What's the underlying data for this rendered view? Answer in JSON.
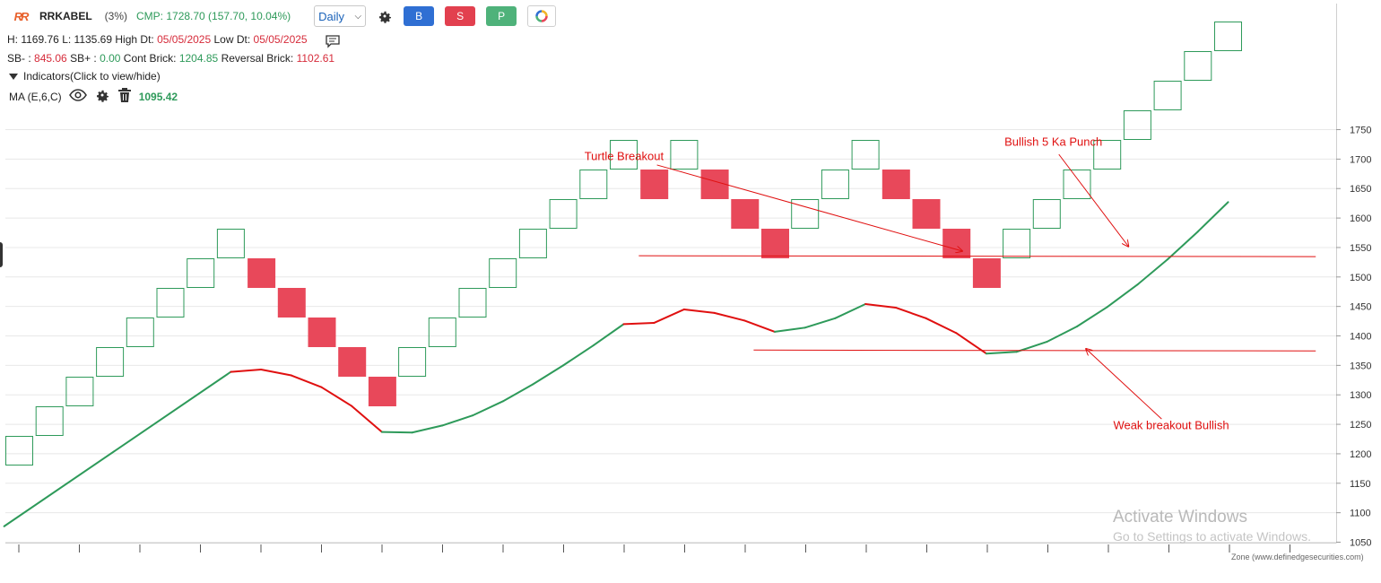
{
  "header": {
    "symbol": "RRKABEL",
    "change_pct": "(3%)",
    "cmp": "CMP: 1728.70 (157.70, 10.04%)",
    "timeframe": "Daily",
    "buttons": {
      "buy": "B",
      "sell": "S",
      "p": "P"
    }
  },
  "stats": {
    "h_label": "H:",
    "h_value": "1169.76",
    "l_label": "L:",
    "l_value": "1135.69",
    "high_dt_label": "High Dt:",
    "high_dt": "05/05/2025",
    "low_dt_label": "Low Dt:",
    "low_dt": "05/05/2025",
    "sb_minus_label": "SB- :",
    "sb_minus": "845.06",
    "sb_plus_label": "SB+ :",
    "sb_plus": "0.00",
    "cont_label": "Cont Brick:",
    "cont_brick": "1204.85",
    "rev_label": "Reversal Brick:",
    "reversal_brick": "1102.61"
  },
  "indicators": {
    "toggle_label": "Indicators(Click to view/hide)",
    "ma_label": "MA (E,6,C)",
    "ma_value": "1095.42"
  },
  "watermark": {
    "line1": "Activate Windows",
    "line2": "Go to Settings to activate Windows."
  },
  "credit": "Zone (www.definedgesecurities.com)",
  "colors": {
    "up": "#2e9a5a",
    "down": "#e8485a",
    "ma_up": "#2e9a5a",
    "ma_down": "#e01010",
    "annotation": "#e01010",
    "grid": "#e8e8e8"
  },
  "chart_data": {
    "type": "renko",
    "brick_size": 50,
    "ylim": [
      1050,
      1760
    ],
    "yticks": [
      1050,
      1100,
      1150,
      1200,
      1250,
      1300,
      1350,
      1400,
      1450,
      1500,
      1550,
      1600,
      1650,
      1700,
      1750
    ],
    "grid": true,
    "bricks": [
      {
        "dir": "up",
        "low": 1135,
        "high": 1185
      },
      {
        "dir": "up",
        "low": 1185,
        "high": 1235
      },
      {
        "dir": "up",
        "low": 1235,
        "high": 1285
      },
      {
        "dir": "up",
        "low": 1285,
        "high": 1335
      },
      {
        "dir": "up",
        "low": 1335,
        "high": 1385
      },
      {
        "dir": "up",
        "low": 1385,
        "high": 1435
      },
      {
        "dir": "up",
        "low": 1435,
        "high": 1485
      },
      {
        "dir": "up",
        "low": 1485,
        "high": 1535
      },
      {
        "dir": "down",
        "low": 1435,
        "high": 1485
      },
      {
        "dir": "down",
        "low": 1385,
        "high": 1435
      },
      {
        "dir": "down",
        "low": 1335,
        "high": 1385
      },
      {
        "dir": "down",
        "low": 1285,
        "high": 1335
      },
      {
        "dir": "down",
        "low": 1235,
        "high": 1285
      },
      {
        "dir": "up",
        "low": 1285,
        "high": 1335
      },
      {
        "dir": "up",
        "low": 1335,
        "high": 1385
      },
      {
        "dir": "up",
        "low": 1385,
        "high": 1435
      },
      {
        "dir": "up",
        "low": 1435,
        "high": 1485
      },
      {
        "dir": "up",
        "low": 1485,
        "high": 1535
      },
      {
        "dir": "up",
        "low": 1535,
        "high": 1585
      },
      {
        "dir": "up",
        "low": 1585,
        "high": 1635
      },
      {
        "dir": "up",
        "low": 1635,
        "high": 1685
      },
      {
        "dir": "down",
        "low": 1585,
        "high": 1635
      },
      {
        "dir": "up",
        "low": 1635,
        "high": 1685
      },
      {
        "dir": "down",
        "low": 1585,
        "high": 1635
      },
      {
        "dir": "down",
        "low": 1535,
        "high": 1585
      },
      {
        "dir": "down",
        "low": 1485,
        "high": 1535
      },
      {
        "dir": "up",
        "low": 1535,
        "high": 1585
      },
      {
        "dir": "up",
        "low": 1585,
        "high": 1635
      },
      {
        "dir": "up",
        "low": 1635,
        "high": 1685
      },
      {
        "dir": "down",
        "low": 1585,
        "high": 1635
      },
      {
        "dir": "down",
        "low": 1535,
        "high": 1585
      },
      {
        "dir": "down",
        "low": 1485,
        "high": 1535
      },
      {
        "dir": "down",
        "low": 1435,
        "high": 1485
      },
      {
        "dir": "up",
        "low": 1485,
        "high": 1535
      },
      {
        "dir": "up",
        "low": 1535,
        "high": 1585
      },
      {
        "dir": "up",
        "low": 1585,
        "high": 1635
      },
      {
        "dir": "up",
        "low": 1635,
        "high": 1685
      },
      {
        "dir": "up",
        "low": 1685,
        "high": 1735
      },
      {
        "dir": "up",
        "low": 1735,
        "high": 1785
      },
      {
        "dir": "up",
        "low": 1785,
        "high": 1835
      },
      {
        "dir": "up",
        "low": 1835,
        "high": 1885
      }
    ],
    "ma": {
      "name": "MA (E,6,C)",
      "points": [
        {
          "i": -0.5,
          "v": 1077
        },
        {
          "i": 7,
          "v": 1339
        },
        {
          "i": 8,
          "v": 1343
        },
        {
          "i": 9,
          "v": 1333
        },
        {
          "i": 10,
          "v": 1313
        },
        {
          "i": 11,
          "v": 1281
        },
        {
          "i": 12,
          "v": 1237
        },
        {
          "i": 13,
          "v": 1236
        },
        {
          "i": 14,
          "v": 1248
        },
        {
          "i": 15,
          "v": 1265
        },
        {
          "i": 16,
          "v": 1289
        },
        {
          "i": 17,
          "v": 1318
        },
        {
          "i": 18,
          "v": 1350
        },
        {
          "i": 19,
          "v": 1384
        },
        {
          "i": 20,
          "v": 1420
        },
        {
          "i": 21,
          "v": 1422
        },
        {
          "i": 22,
          "v": 1445
        },
        {
          "i": 23,
          "v": 1439
        },
        {
          "i": 24,
          "v": 1426
        },
        {
          "i": 25,
          "v": 1407
        },
        {
          "i": 26,
          "v": 1414
        },
        {
          "i": 27,
          "v": 1430
        },
        {
          "i": 28,
          "v": 1454
        },
        {
          "i": 29,
          "v": 1448
        },
        {
          "i": 30,
          "v": 1430
        },
        {
          "i": 31,
          "v": 1405
        },
        {
          "i": 32,
          "v": 1370
        },
        {
          "i": 33,
          "v": 1373
        },
        {
          "i": 34,
          "v": 1390
        },
        {
          "i": 35,
          "v": 1416
        },
        {
          "i": 36,
          "v": 1449
        },
        {
          "i": 37,
          "v": 1487
        },
        {
          "i": 38,
          "v": 1530
        },
        {
          "i": 39,
          "v": 1577
        },
        {
          "i": 40,
          "v": 1627
        }
      ],
      "down_segments": [
        [
          7,
          12
        ],
        [
          20,
          25
        ],
        [
          28,
          32
        ]
      ]
    },
    "annotations": [
      {
        "text": "Turtle Breakout",
        "label_at": [
          18.7,
          1698
        ],
        "from": [
          21.1,
          1690
        ],
        "to": [
          31.2,
          1544
        ]
      },
      {
        "text": "Bullish 5 Ka Punch",
        "label_at": [
          32.6,
          1723
        ],
        "from": [
          34.4,
          1708
        ],
        "to": [
          36.7,
          1552
        ]
      },
      {
        "text": "Weak breakout Bullish",
        "label_at": [
          36.2,
          1242
        ],
        "from": [
          37.8,
          1259
        ],
        "to": [
          35.3,
          1378
        ]
      }
    ],
    "hlines": [
      {
        "value": 1536,
        "from_i": 20.5,
        "to_i": 42.9
      },
      {
        "value": 1376,
        "from_i": 24.3,
        "to_i": 42.9
      }
    ]
  }
}
